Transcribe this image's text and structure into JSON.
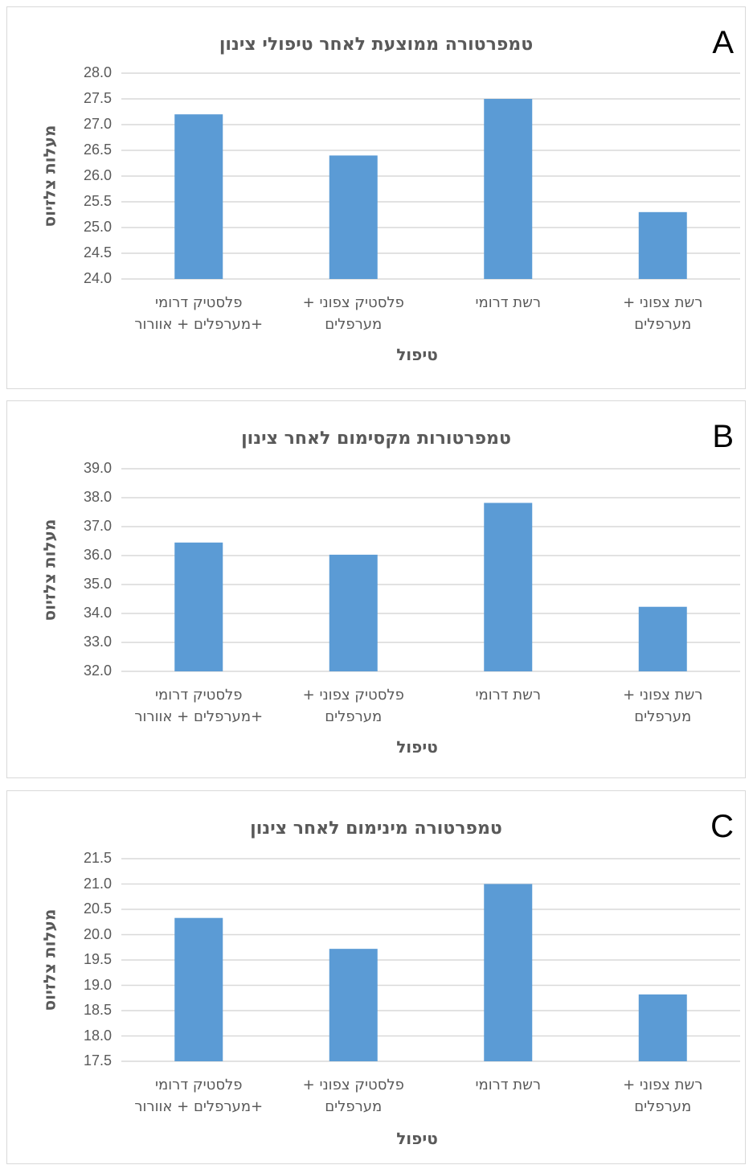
{
  "chart_data": [
    {
      "type": "bar",
      "panel_letter": "A",
      "title": "טמפרטורה ממוצעת לאחר טיפולי צינון",
      "xlabel": "טיפול",
      "ylabel": "מעלות צלזיוס",
      "categories": [
        [
          "פלסטיק דרומי",
          "+מערפלים + אוורור"
        ],
        [
          "פלסטיק צפוני +",
          "מערפלים"
        ],
        [
          "רשת דרומי"
        ],
        [
          "רשת צפוני +",
          "מערפלים"
        ]
      ],
      "values": [
        27.2,
        26.4,
        27.5,
        25.3
      ],
      "ylim": [
        24.0,
        28.0
      ],
      "yticks": [
        "24.0",
        "24.5",
        "25.0",
        "25.5",
        "26.0",
        "26.5",
        "27.0",
        "27.5",
        "28.0"
      ],
      "grid": true,
      "bar_color": "#5b9bd5"
    },
    {
      "type": "bar",
      "panel_letter": "B",
      "title": "טמפרטורות מקסימום לאחר צינון",
      "xlabel": "טיפול",
      "ylabel": "מעלות צלזיוס",
      "categories": [
        [
          "פלסטיק דרומי",
          "+מערפלים + אוורור"
        ],
        [
          "פלסטיק צפוני +",
          "מערפלים"
        ],
        [
          "רשת דרומי"
        ],
        [
          "רשת צפוני +",
          "מערפלים"
        ]
      ],
      "values": [
        36.45,
        36.03,
        37.82,
        34.23
      ],
      "ylim": [
        32.0,
        39.0
      ],
      "yticks": [
        "32.0",
        "33.0",
        "34.0",
        "35.0",
        "36.0",
        "37.0",
        "38.0",
        "39.0"
      ],
      "grid": true,
      "bar_color": "#5b9bd5"
    },
    {
      "type": "bar",
      "panel_letter": "C",
      "title": "טמפרטורה מינימום לאחר צינון",
      "xlabel": "טיפול",
      "ylabel": "מעלות צלזיוס",
      "categories": [
        [
          "פלסטיק דרומי",
          "+מערפלים + אוורור"
        ],
        [
          "פלסטיק צפוני +",
          "מערפלים"
        ],
        [
          "רשת דרומי"
        ],
        [
          "רשת צפוני +",
          "מערפלים"
        ]
      ],
      "values": [
        20.33,
        19.72,
        21.0,
        18.82
      ],
      "ylim": [
        17.5,
        21.5
      ],
      "yticks": [
        "17.5",
        "18.0",
        "18.5",
        "19.0",
        "19.5",
        "20.0",
        "20.5",
        "21.0",
        "21.5"
      ],
      "grid": true,
      "bar_color": "#5b9bd5"
    }
  ]
}
